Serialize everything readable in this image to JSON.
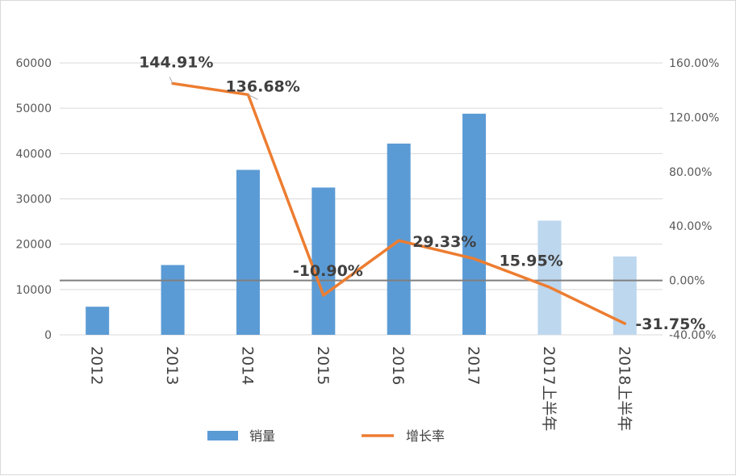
{
  "chart_data": {
    "type": "bar",
    "categories": [
      "2012",
      "2013",
      "2014",
      "2015",
      "2016",
      "2017",
      "2017上半年",
      "2018上半年"
    ],
    "series": [
      {
        "name": "销量",
        "type": "bar",
        "axis": "left",
        "values": [
          6200,
          15400,
          36400,
          32500,
          42200,
          48800,
          25200,
          17300
        ],
        "colors": [
          "#5B9BD5",
          "#5B9BD5",
          "#5B9BD5",
          "#5B9BD5",
          "#5B9BD5",
          "#5B9BD5",
          "#BDD7EE",
          "#BDD7EE"
        ]
      },
      {
        "name": "增长率",
        "type": "line",
        "axis": "right",
        "color": "#ED7D31",
        "values": [
          null,
          144.91,
          136.68,
          -10.9,
          29.33,
          15.95,
          -5.0,
          -31.75
        ],
        "labels": [
          "",
          "144.91%",
          "136.68%",
          "-10.90%",
          "29.33%",
          "15.95%",
          "",
          "-31.75%"
        ]
      }
    ],
    "y_left": {
      "ylim": [
        0,
        60000
      ],
      "ticks": [
        "0",
        "10000",
        "20000",
        "30000",
        "40000",
        "50000",
        "60000"
      ]
    },
    "y_right": {
      "ylim": [
        -40,
        160
      ],
      "ticks": [
        "-40.00%",
        "0.00%",
        "40.00%",
        "80.00%",
        "120.00%",
        "160.00%"
      ]
    },
    "gridlines": true,
    "legend_position": "bottom",
    "legend": [
      {
        "label": "销量",
        "kind": "bar",
        "color": "#5B9BD5"
      },
      {
        "label": "增长率",
        "kind": "line",
        "color": "#ED7D31"
      }
    ],
    "title": "",
    "xlabel": "",
    "ylabel": ""
  }
}
